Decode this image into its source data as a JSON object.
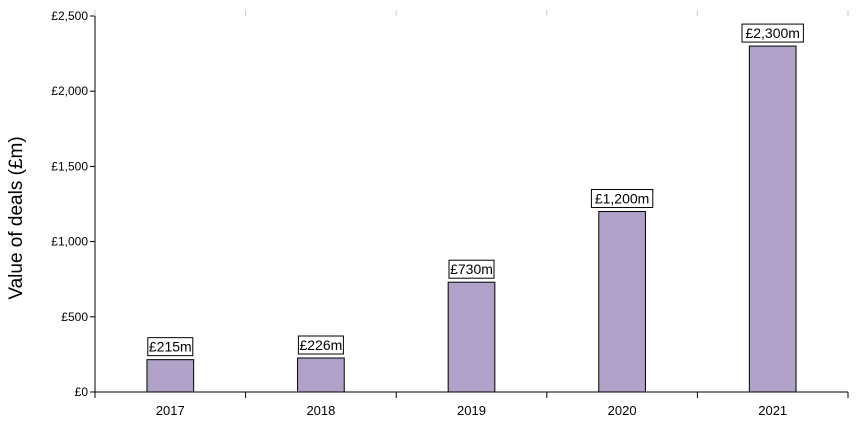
{
  "chart_data": {
    "type": "bar",
    "title": "",
    "xlabel": "",
    "ylabel": "Value of deals (£m)",
    "categories": [
      "2017",
      "2018",
      "2019",
      "2020",
      "2021"
    ],
    "values": [
      215,
      226,
      730,
      1200,
      2300
    ],
    "data_labels": [
      "£215m",
      "£226m",
      "£730m",
      "£1,200m",
      "£2,300m"
    ],
    "ylim": [
      0,
      2500
    ],
    "y_ticks": [
      0,
      500,
      1000,
      1500,
      2000,
      2500
    ],
    "y_tick_labels": [
      "£0",
      "£500",
      "£1,000",
      "£1,500",
      "£2,000",
      "£2,500"
    ],
    "grid": false,
    "legend": "none",
    "colors": {
      "bar_fill": "#b1a2c9",
      "bar_stroke": "#000000",
      "axis": "#000000",
      "label_box_fill": "#ffffff"
    }
  }
}
